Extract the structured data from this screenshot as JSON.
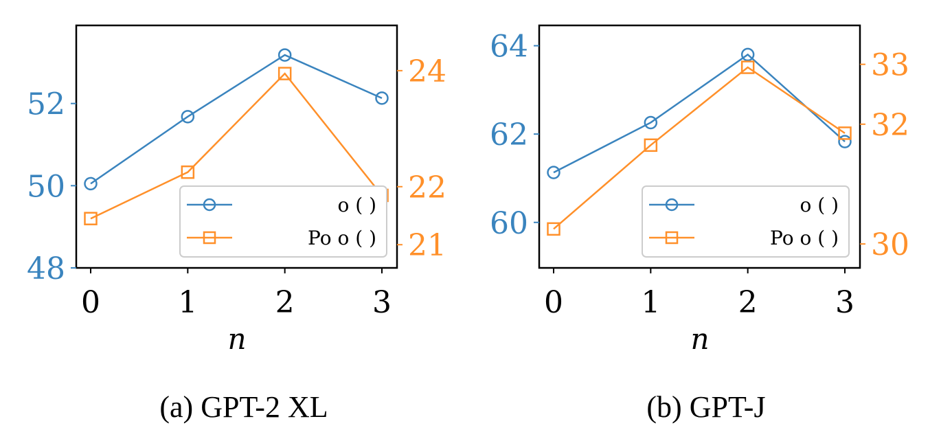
{
  "chart_data": [
    {
      "type": "line",
      "caption": "(a) GPT-2 XL",
      "xlabel": "n",
      "x": [
        0,
        1,
        2,
        3
      ],
      "xticks": [
        "0",
        "1",
        "2",
        "3"
      ],
      "left_axis": {
        "ylim": [
          48,
          53.9
        ],
        "ticks": [
          "48",
          "50",
          "52"
        ],
        "color": "#3a84be"
      },
      "right_axis": {
        "ylim": [
          20.6,
          24.78
        ],
        "ticks": [
          "21",
          "22",
          "24"
        ],
        "color": "#ff902a"
      },
      "series": [
        {
          "name": "o ( )",
          "axis": "left",
          "marker": "circle",
          "color": "#3a84be",
          "values": [
            50.05,
            51.68,
            53.18,
            52.13
          ]
        },
        {
          "name": "Po o ( )",
          "axis": "right",
          "marker": "square",
          "color": "#ff902a",
          "values": [
            21.45,
            22.25,
            23.95,
            21.85
          ]
        }
      ],
      "legend": "lower-right",
      "grid": false
    },
    {
      "type": "line",
      "caption": "(b) GPT-J",
      "xlabel": "n",
      "x": [
        0,
        1,
        2,
        3
      ],
      "xticks": [
        "0",
        "1",
        "2",
        "3"
      ],
      "left_axis": {
        "ylim": [
          58.97,
          64.46
        ],
        "ticks": [
          "60",
          "62",
          "64"
        ],
        "color": "#3a84be"
      },
      "right_axis": {
        "ylim": [
          29.6,
          33.65
        ],
        "ticks": [
          "30",
          "32",
          "33"
        ],
        "color": "#ff902a"
      },
      "series": [
        {
          "name": "o ( )",
          "axis": "left",
          "marker": "circle",
          "color": "#3a84be",
          "values": [
            61.13,
            62.26,
            63.8,
            61.83
          ]
        },
        {
          "name": "Po o ( )",
          "axis": "right",
          "marker": "square",
          "color": "#ff902a",
          "values": [
            30.25,
            31.65,
            32.95,
            31.85
          ]
        }
      ],
      "legend": "lower-right",
      "grid": false
    }
  ]
}
